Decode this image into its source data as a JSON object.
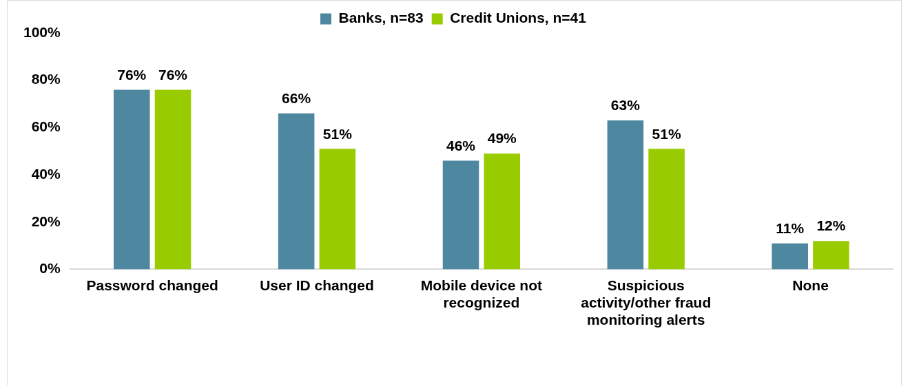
{
  "chart_data": {
    "type": "bar",
    "categories": [
      "Password changed",
      "User ID changed",
      "Mobile device not recognized",
      "Suspicious activity/other fraud monitoring alerts",
      "None"
    ],
    "series": [
      {
        "name": "Banks, n=83",
        "color": "#4e87a0",
        "values": [
          76,
          66,
          46,
          63,
          11
        ],
        "value_labels": [
          "76%",
          "66%",
          "46%",
          "63%",
          "11%"
        ]
      },
      {
        "name": "Credit Unions, n=41",
        "color": "#99cc00",
        "values": [
          76,
          51,
          49,
          51,
          12
        ],
        "value_labels": [
          "76%",
          "51%",
          "49%",
          "51%",
          "12%"
        ]
      }
    ],
    "ylim": [
      0,
      100
    ],
    "yticks": [
      {
        "value": 0,
        "label": "0%"
      },
      {
        "value": 20,
        "label": "20%"
      },
      {
        "value": 40,
        "label": "40%"
      },
      {
        "value": 60,
        "label": "60%"
      },
      {
        "value": 80,
        "label": "80%"
      },
      {
        "value": 100,
        "label": "100%"
      }
    ],
    "grid": false,
    "legend": "top"
  }
}
